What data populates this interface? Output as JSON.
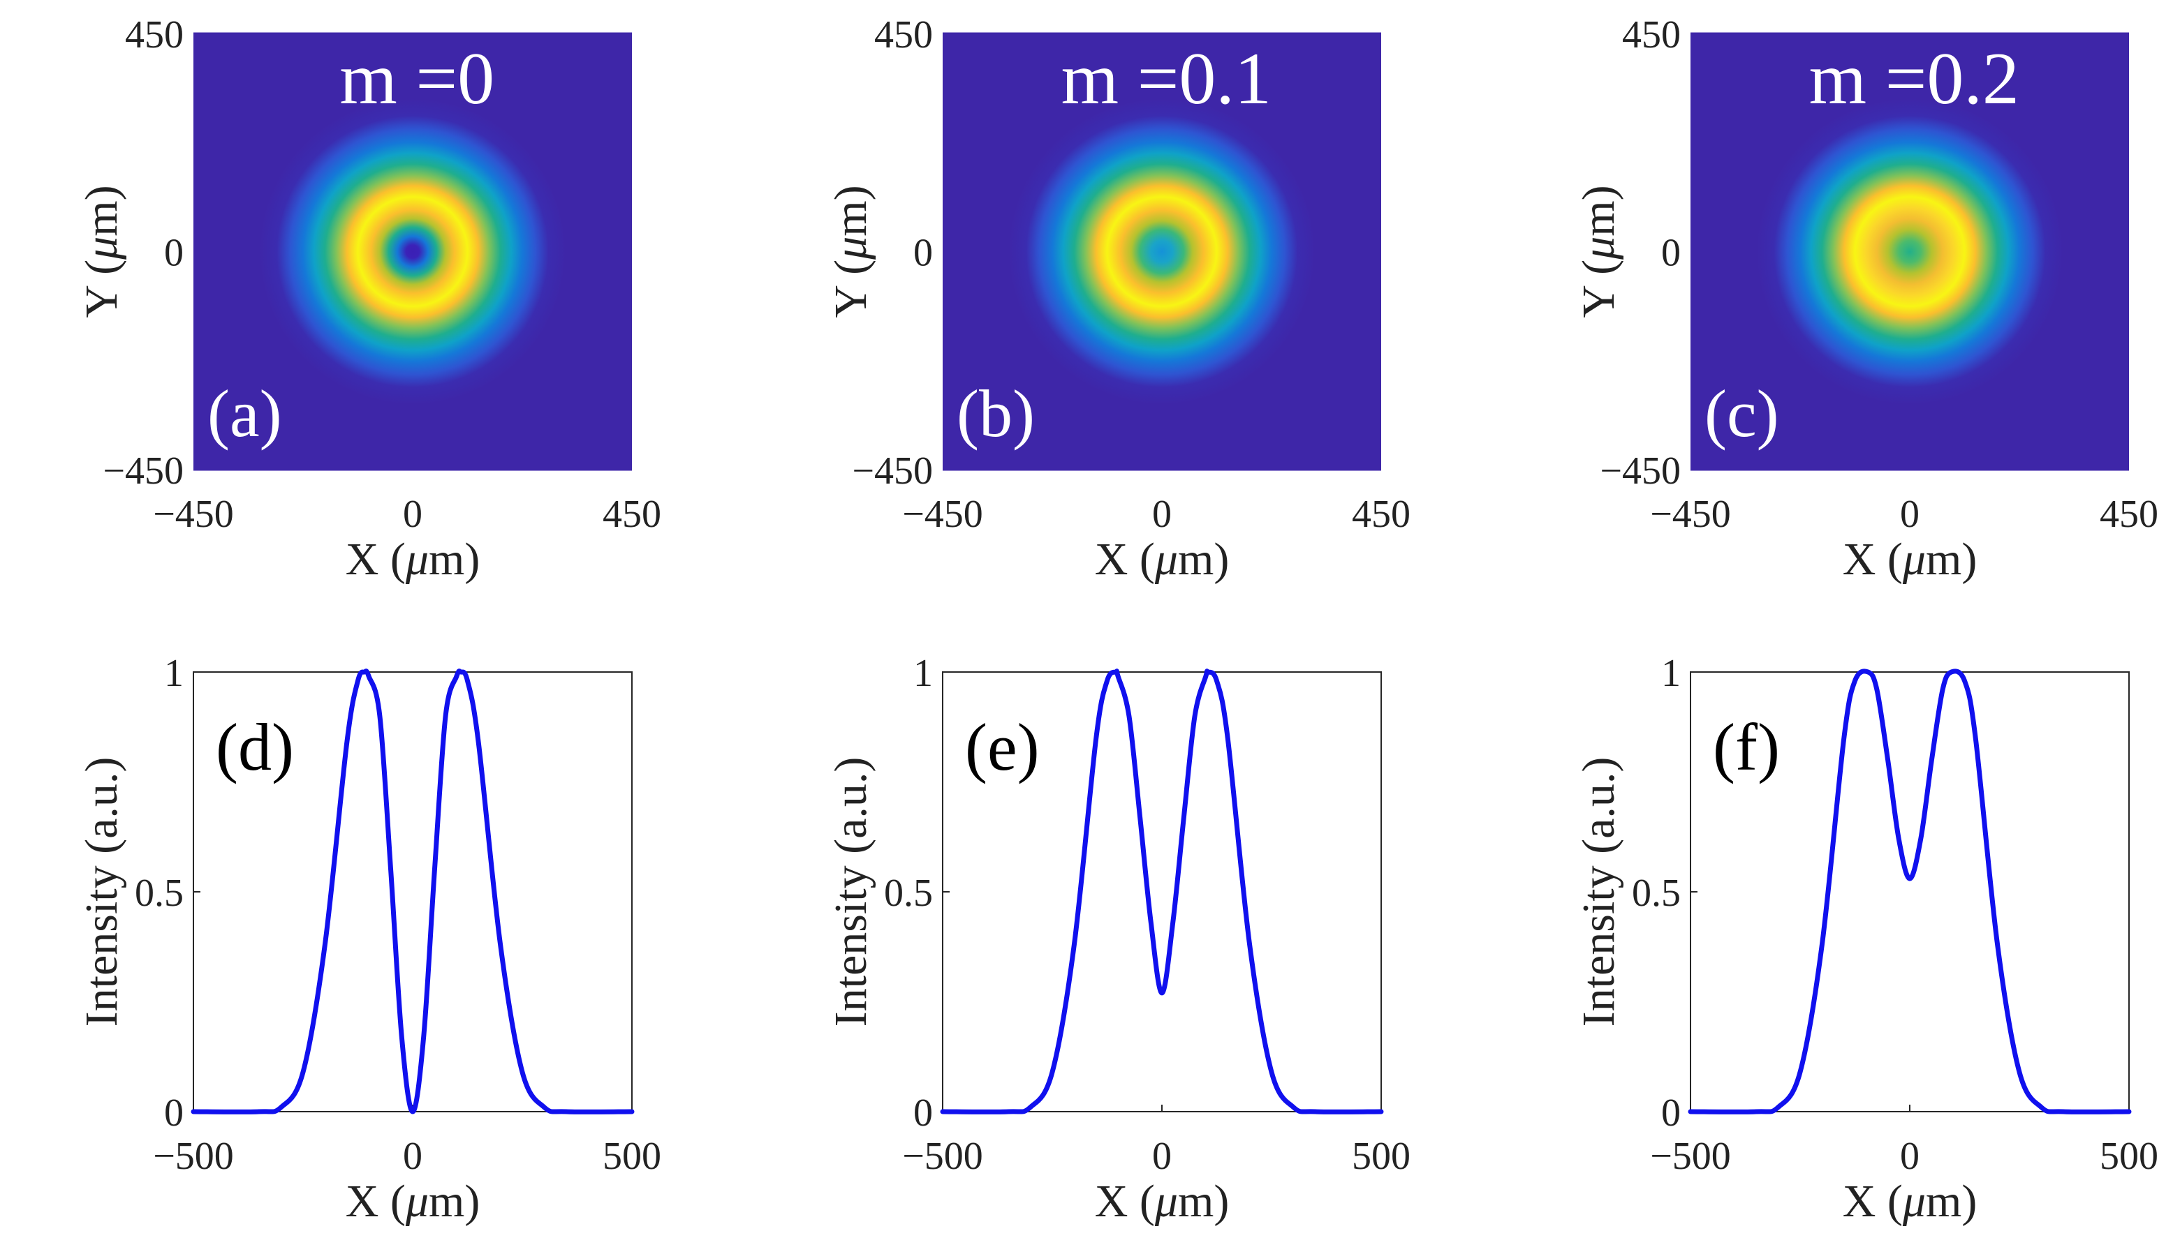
{
  "chart_data": [
    {
      "type": "heatmap",
      "panel_label": "(a)",
      "title": "m =0",
      "m": 0,
      "xlabel": "X (μm)",
      "ylabel": "Y (μm)",
      "xlim": [
        -450,
        450
      ],
      "ylim": [
        -450,
        450
      ],
      "x_ticks": [
        "−450",
        "0",
        "450"
      ],
      "y_ticks": [
        "450",
        "0",
        "−450"
      ],
      "colormap": "parula"
    },
    {
      "type": "heatmap",
      "panel_label": "(b)",
      "title": "m =0.1",
      "m": 0.1,
      "xlabel": "X (μm)",
      "ylabel": "Y (μm)",
      "xlim": [
        -450,
        450
      ],
      "ylim": [
        -450,
        450
      ],
      "x_ticks": [
        "−450",
        "0",
        "450"
      ],
      "y_ticks": [
        "450",
        "0",
        "−450"
      ],
      "colormap": "parula"
    },
    {
      "type": "heatmap",
      "panel_label": "(c)",
      "title": "m =0.2",
      "m": 0.2,
      "xlabel": "X (μm)",
      "ylabel": "Y (μm)",
      "xlim": [
        -450,
        450
      ],
      "ylim": [
        -450,
        450
      ],
      "x_ticks": [
        "−450",
        "0",
        "450"
      ],
      "y_ticks": [
        "450",
        "0",
        "−450"
      ],
      "colormap": "parula"
    },
    {
      "type": "line",
      "panel_label": "(d)",
      "xlabel": "X (μm)",
      "ylabel": "Intensity (a.u.)",
      "xlim": [
        -500,
        500
      ],
      "ylim": [
        0,
        1
      ],
      "x_ticks": [
        "−500",
        "0",
        "500"
      ],
      "y_ticks": [
        "1",
        "0.5",
        "0"
      ],
      "color": "#1010ee",
      "series": [
        {
          "x": [
            -500,
            -350,
            -300,
            -250,
            -200,
            -150,
            -125,
            -110,
            -100,
            -75,
            -50,
            -25,
            0,
            25,
            50,
            75,
            100,
            110,
            125,
            150,
            200,
            250,
            300,
            350,
            500
          ],
          "values": [
            0,
            0,
            0.01,
            0.09,
            0.38,
            0.84,
            0.98,
            1.0,
            0.99,
            0.9,
            0.55,
            0.17,
            0,
            0.17,
            0.55,
            0.9,
            0.99,
            1.0,
            0.98,
            0.84,
            0.38,
            0.09,
            0.01,
            0,
            0
          ]
        }
      ]
    },
    {
      "type": "line",
      "panel_label": "(e)",
      "xlabel": "X (μm)",
      "ylabel": "Intensity (a.u.)",
      "xlim": [
        -500,
        500
      ],
      "ylim": [
        0,
        1
      ],
      "x_ticks": [
        "−500",
        "0",
        "500"
      ],
      "y_ticks": [
        "1",
        "0.5",
        "0"
      ],
      "color": "#1010ee",
      "series": [
        {
          "x": [
            -500,
            -350,
            -300,
            -250,
            -200,
            -150,
            -125,
            -105,
            -100,
            -75,
            -50,
            -25,
            0,
            25,
            50,
            75,
            100,
            105,
            125,
            150,
            200,
            250,
            300,
            350,
            500
          ],
          "values": [
            0,
            0,
            0.01,
            0.09,
            0.38,
            0.85,
            0.98,
            1.0,
            0.99,
            0.9,
            0.67,
            0.43,
            0.27,
            0.43,
            0.67,
            0.9,
            0.99,
            1.0,
            0.98,
            0.85,
            0.38,
            0.09,
            0.01,
            0,
            0
          ]
        }
      ]
    },
    {
      "type": "line",
      "panel_label": "(f)",
      "xlabel": "X (μm)",
      "ylabel": "Intensity (a.u.)",
      "xlim": [
        -500,
        500
      ],
      "ylim": [
        0,
        1
      ],
      "x_ticks": [
        "−500",
        "0",
        "500"
      ],
      "y_ticks": [
        "1",
        "0.5",
        "0"
      ],
      "color": "#1010ee",
      "series": [
        {
          "x": [
            -500,
            -350,
            -300,
            -250,
            -200,
            -150,
            -125,
            -95,
            -75,
            -50,
            -25,
            0,
            25,
            50,
            75,
            95,
            125,
            150,
            200,
            250,
            300,
            350,
            500
          ],
          "values": [
            0,
            0,
            0.01,
            0.09,
            0.38,
            0.85,
            0.98,
            1.0,
            0.96,
            0.8,
            0.62,
            0.53,
            0.62,
            0.8,
            0.96,
            1.0,
            0.98,
            0.85,
            0.38,
            0.09,
            0.01,
            0,
            0
          ]
        }
      ]
    }
  ]
}
